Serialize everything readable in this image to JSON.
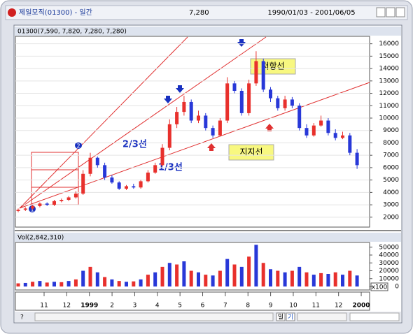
{
  "window": {
    "title": "제일모직(01300) - 일간",
    "price": "7,280",
    "period": "1990/01/03 - 2001/06/05"
  },
  "chart_data": [
    {
      "type": "candlestick",
      "header": "01300(7,590, 7,820, 7,280, 7,280)",
      "open": [
        2500,
        2600,
        2700,
        2900,
        3100,
        3000,
        3300,
        3400,
        3600,
        3900,
        5500,
        6800,
        6200,
        5200,
        4800,
        4300,
        4500,
        4400,
        4900,
        5600,
        6200,
        7600,
        9500,
        10500,
        11300,
        9800,
        10200,
        9200,
        8600,
        9800,
        12800,
        12200,
        10400,
        12800,
        14600,
        12300,
        11600,
        10800,
        11500,
        11000,
        9200,
        8600,
        9400,
        9800,
        8800,
        8400,
        8600,
        7200
      ],
      "high": [
        2700,
        2800,
        3000,
        3200,
        3200,
        3400,
        3500,
        3700,
        4100,
        5800,
        7200,
        6900,
        6400,
        5400,
        4900,
        4600,
        4700,
        5000,
        5800,
        6400,
        7900,
        9900,
        10900,
        11800,
        11500,
        10600,
        10400,
        9400,
        10000,
        13300,
        13000,
        12400,
        13100,
        15400,
        14800,
        12500,
        11800,
        11800,
        11700,
        11200,
        9500,
        9600,
        10200,
        10000,
        9100,
        8900,
        8800,
        7500
      ],
      "low": [
        2400,
        2500,
        2600,
        2800,
        2900,
        2900,
        3200,
        3300,
        3500,
        3800,
        5300,
        6000,
        5000,
        4700,
        4200,
        4200,
        4300,
        4300,
        4800,
        5500,
        6100,
        7400,
        9200,
        10200,
        9600,
        9600,
        9000,
        8400,
        8500,
        9600,
        12000,
        10200,
        10200,
        12600,
        12100,
        11300,
        10600,
        10600,
        10800,
        9000,
        8400,
        8500,
        9300,
        8600,
        8200,
        8300,
        7000,
        5900
      ],
      "close": [
        2600,
        2700,
        2900,
        3100,
        3000,
        3300,
        3400,
        3600,
        3900,
        5500,
        6800,
        6200,
        5200,
        4800,
        4300,
        4500,
        4400,
        4900,
        5600,
        6200,
        7600,
        9500,
        10500,
        11300,
        9800,
        10200,
        9200,
        8600,
        9800,
        12800,
        12200,
        10400,
        12800,
        14600,
        12300,
        11600,
        10800,
        11500,
        11000,
        9200,
        8600,
        9400,
        9800,
        8800,
        8400,
        8600,
        7200,
        6200
      ],
      "up_color": "#e8302c",
      "down_color": "#2838d8",
      "ylim": [
        1200,
        16600
      ],
      "yticks": [
        2000,
        3000,
        4000,
        5000,
        6000,
        7000,
        8000,
        9000,
        10000,
        11000,
        12000,
        13000,
        14000,
        15000,
        16000
      ],
      "annotations": [
        "2/3선",
        "1/3선",
        "저항선",
        "지지선"
      ],
      "markers": [
        "1",
        "2"
      ]
    },
    {
      "type": "bar",
      "header": "Vol(2,842,310)",
      "unit_label": "x100",
      "color": "#e8302c",
      "alt_color": "#2838d8",
      "values": [
        4000,
        4500,
        6000,
        7000,
        5000,
        6000,
        5500,
        7000,
        9000,
        20000,
        25000,
        18000,
        12000,
        9000,
        7000,
        6000,
        6500,
        9000,
        15000,
        18000,
        25000,
        30000,
        28000,
        32000,
        20000,
        18000,
        15000,
        14000,
        20000,
        35000,
        28000,
        25000,
        38000,
        53000,
        30000,
        22000,
        20000,
        18000,
        20000,
        25000,
        18000,
        15000,
        17000,
        16000,
        18000,
        15000,
        20000,
        14000
      ],
      "ylim": [
        0,
        56000
      ],
      "yticks": [
        0,
        10000,
        20000,
        30000,
        40000,
        50000
      ]
    }
  ],
  "month_labels": [
    "11",
    "12",
    "1999",
    "2",
    "3",
    "4",
    "5",
    "6",
    "7",
    "8",
    "9",
    "10",
    "11",
    "12",
    "2000"
  ],
  "toolbar": [
    "?",
    "일",
    "기"
  ]
}
